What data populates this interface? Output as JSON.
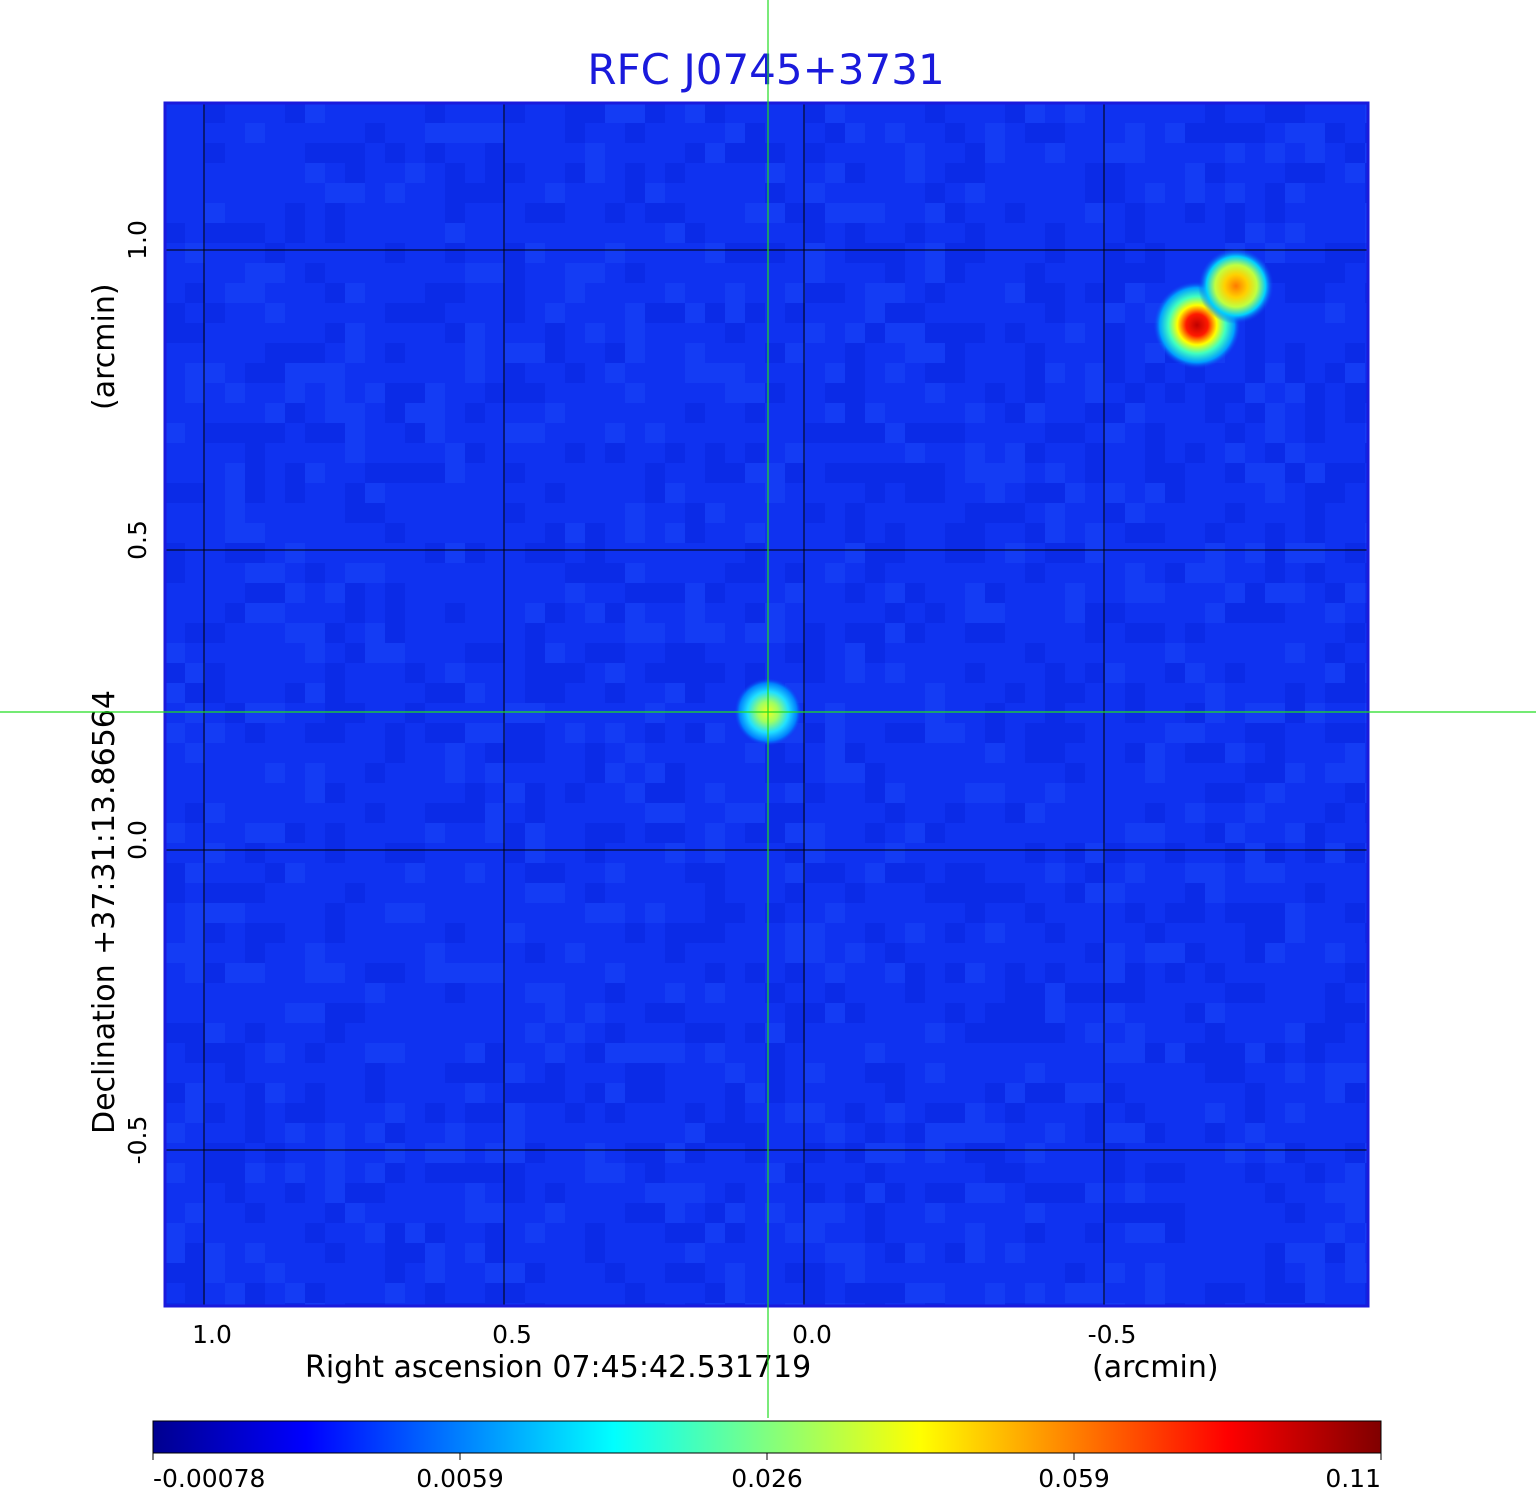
{
  "chart_data": {
    "type": "heatmap",
    "title": "RFC J0745+3731",
    "xlabel": "Right ascension  07:45:42.531719",
    "xunit": "(arcmin)",
    "ylabel": "Declination  +37:31:13.86564",
    "yunit": "(arcmin)",
    "x_ticks": [
      1.0,
      0.5,
      0.0,
      -0.5
    ],
    "x_tick_labels": [
      "1.0",
      "0.5",
      "0.0",
      "-0.5"
    ],
    "y_ticks": [
      1.0,
      0.5,
      0.0,
      -0.5
    ],
    "y_tick_labels": [
      "1.0",
      "0.5",
      "0.0",
      "-0.5"
    ],
    "xlim": [
      1.065,
      -0.94
    ],
    "ylim": [
      -0.76,
      1.245
    ],
    "grid": true,
    "crosshair": {
      "x": 0.06,
      "y": 0.23
    },
    "sources": [
      {
        "x": 0.06,
        "y": 0.23,
        "peak": 0.04
      },
      {
        "x": -0.655,
        "y": 0.875,
        "peak": 0.11
      },
      {
        "x": -0.72,
        "y": 0.94,
        "peak": 0.07
      }
    ],
    "colorbar": {
      "ticks": [
        "-0.00078",
        "0.0059",
        "0.026",
        "0.059",
        "0.11"
      ],
      "min": -0.00078,
      "max": 0.11,
      "colormap": "jet"
    }
  },
  "colors": {
    "background_map": "#0f32f0",
    "title": "#1a1adc",
    "crosshair": "#22dd22",
    "frame": "#1a1adc"
  }
}
